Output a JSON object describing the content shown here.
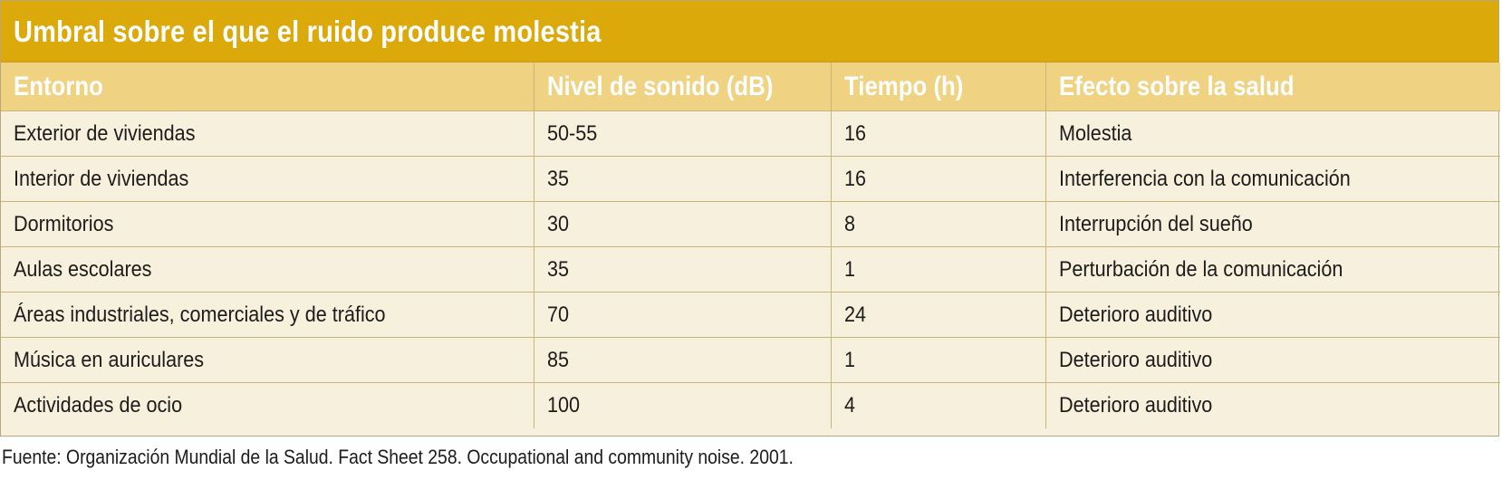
{
  "title": "Umbral sobre el que el ruido produce molestia",
  "columns": [
    "Entorno",
    "Nivel de sonido (dB)",
    "Tiempo (h)",
    "Efecto sobre la salud"
  ],
  "rows": [
    [
      "Exterior de viviendas",
      "50-55",
      "16",
      "Molestia"
    ],
    [
      "Interior de viviendas",
      "35",
      "16",
      "Interferencia con la comunicación"
    ],
    [
      "Dormitorios",
      "30",
      "8",
      "Interrupción del sueño"
    ],
    [
      "Aulas escolares",
      "35",
      "1",
      "Perturbación de la comunicación"
    ],
    [
      "Áreas industriales, comerciales y de tráfico",
      "70",
      "24",
      "Deterioro auditivo"
    ],
    [
      "Música en auriculares",
      "85",
      "1",
      "Deterioro auditivo"
    ],
    [
      "Actividades de ocio",
      "100",
      "4",
      "Deterioro auditivo"
    ]
  ],
  "source": "Fuente: Organización Mundial de la Salud. Fact Sheet 258. Occupational and community noise. 2001.",
  "colors": {
    "title_bg": "#dba90a",
    "header_bg": "#efd282",
    "body_bg": "#f7f0dd"
  }
}
